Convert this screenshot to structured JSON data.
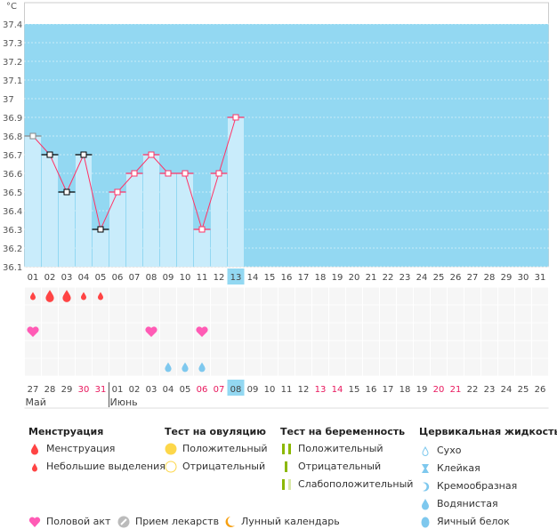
{
  "chart_data": {
    "type": "bar",
    "unit": "°C",
    "ylim": [
      36.1,
      37.4
    ],
    "yticks": [
      "36.1",
      "36.2",
      "36.3",
      "36.4",
      "36.5",
      "36.6",
      "36.7",
      "36.8",
      "36.9",
      "37",
      "37.1",
      "37.2",
      "37.3",
      "37.4"
    ],
    "cycle_days": [
      "01",
      "02",
      "03",
      "04",
      "05",
      "06",
      "07",
      "08",
      "09",
      "10",
      "11",
      "12",
      "13",
      "14",
      "15",
      "16",
      "17",
      "18",
      "19",
      "20",
      "21",
      "22",
      "23",
      "24",
      "25",
      "26",
      "27",
      "28",
      "29",
      "30",
      "31"
    ],
    "temperatures": [
      36.8,
      36.7,
      36.5,
      36.7,
      36.3,
      36.5,
      36.6,
      36.7,
      36.6,
      36.6,
      36.3,
      36.6,
      36.9
    ],
    "marker_types": [
      "gray",
      "black",
      "black",
      "black",
      "black",
      "pink",
      "pink",
      "pink",
      "pink",
      "pink",
      "pink",
      "pink",
      "pink"
    ],
    "current_day_index": 12,
    "dates": [
      "27",
      "28",
      "29",
      "30",
      "31",
      "01",
      "02",
      "03",
      "04",
      "05",
      "06",
      "07",
      "08",
      "09",
      "10",
      "11",
      "12",
      "13",
      "14",
      "15",
      "16",
      "17",
      "18",
      "19",
      "20",
      "21",
      "22",
      "23",
      "24",
      "25",
      "26"
    ],
    "weekend_dates_idx": [
      3,
      4,
      10,
      11,
      17,
      18,
      24,
      25
    ],
    "months": [
      {
        "label": "Май",
        "start": 0
      },
      {
        "label": "Июнь",
        "start": 5
      }
    ],
    "menstruation": [
      "light",
      "heavy",
      "heavy",
      "light",
      "light"
    ],
    "intercourse_days_idx": [
      0,
      7,
      10
    ],
    "cervical_watery_idx": [
      8,
      9,
      10
    ],
    "colors": {
      "bg": "#93d8f2",
      "bar": "#c9ecfb",
      "line": "#ff3366",
      "weekend": "#e8175d",
      "highlight": "#93d8f2",
      "drop": "#f44",
      "cervical": "#7ec8ee",
      "heart": "#ff5bb5"
    }
  },
  "legend": {
    "menstruation": {
      "title": "Менструация",
      "items": [
        "Менструация",
        "Небольшие выделения"
      ]
    },
    "ovulation": {
      "title": "Тест на овуляцию",
      "items": [
        "Положительный",
        "Отрицательный"
      ]
    },
    "pregnancy": {
      "title": "Тест на беременность",
      "items": [
        "Положительный",
        "Отрицательный",
        "Слабоположительный"
      ]
    },
    "cervical": {
      "title": "Цервикальная жидкость",
      "items": [
        "Сухо",
        "Клейкая",
        "Кремообразная",
        "Водянистая",
        "Яичный белок"
      ]
    },
    "other": [
      "Половой акт",
      "Прием лекарств",
      "Лунный календарь"
    ]
  }
}
